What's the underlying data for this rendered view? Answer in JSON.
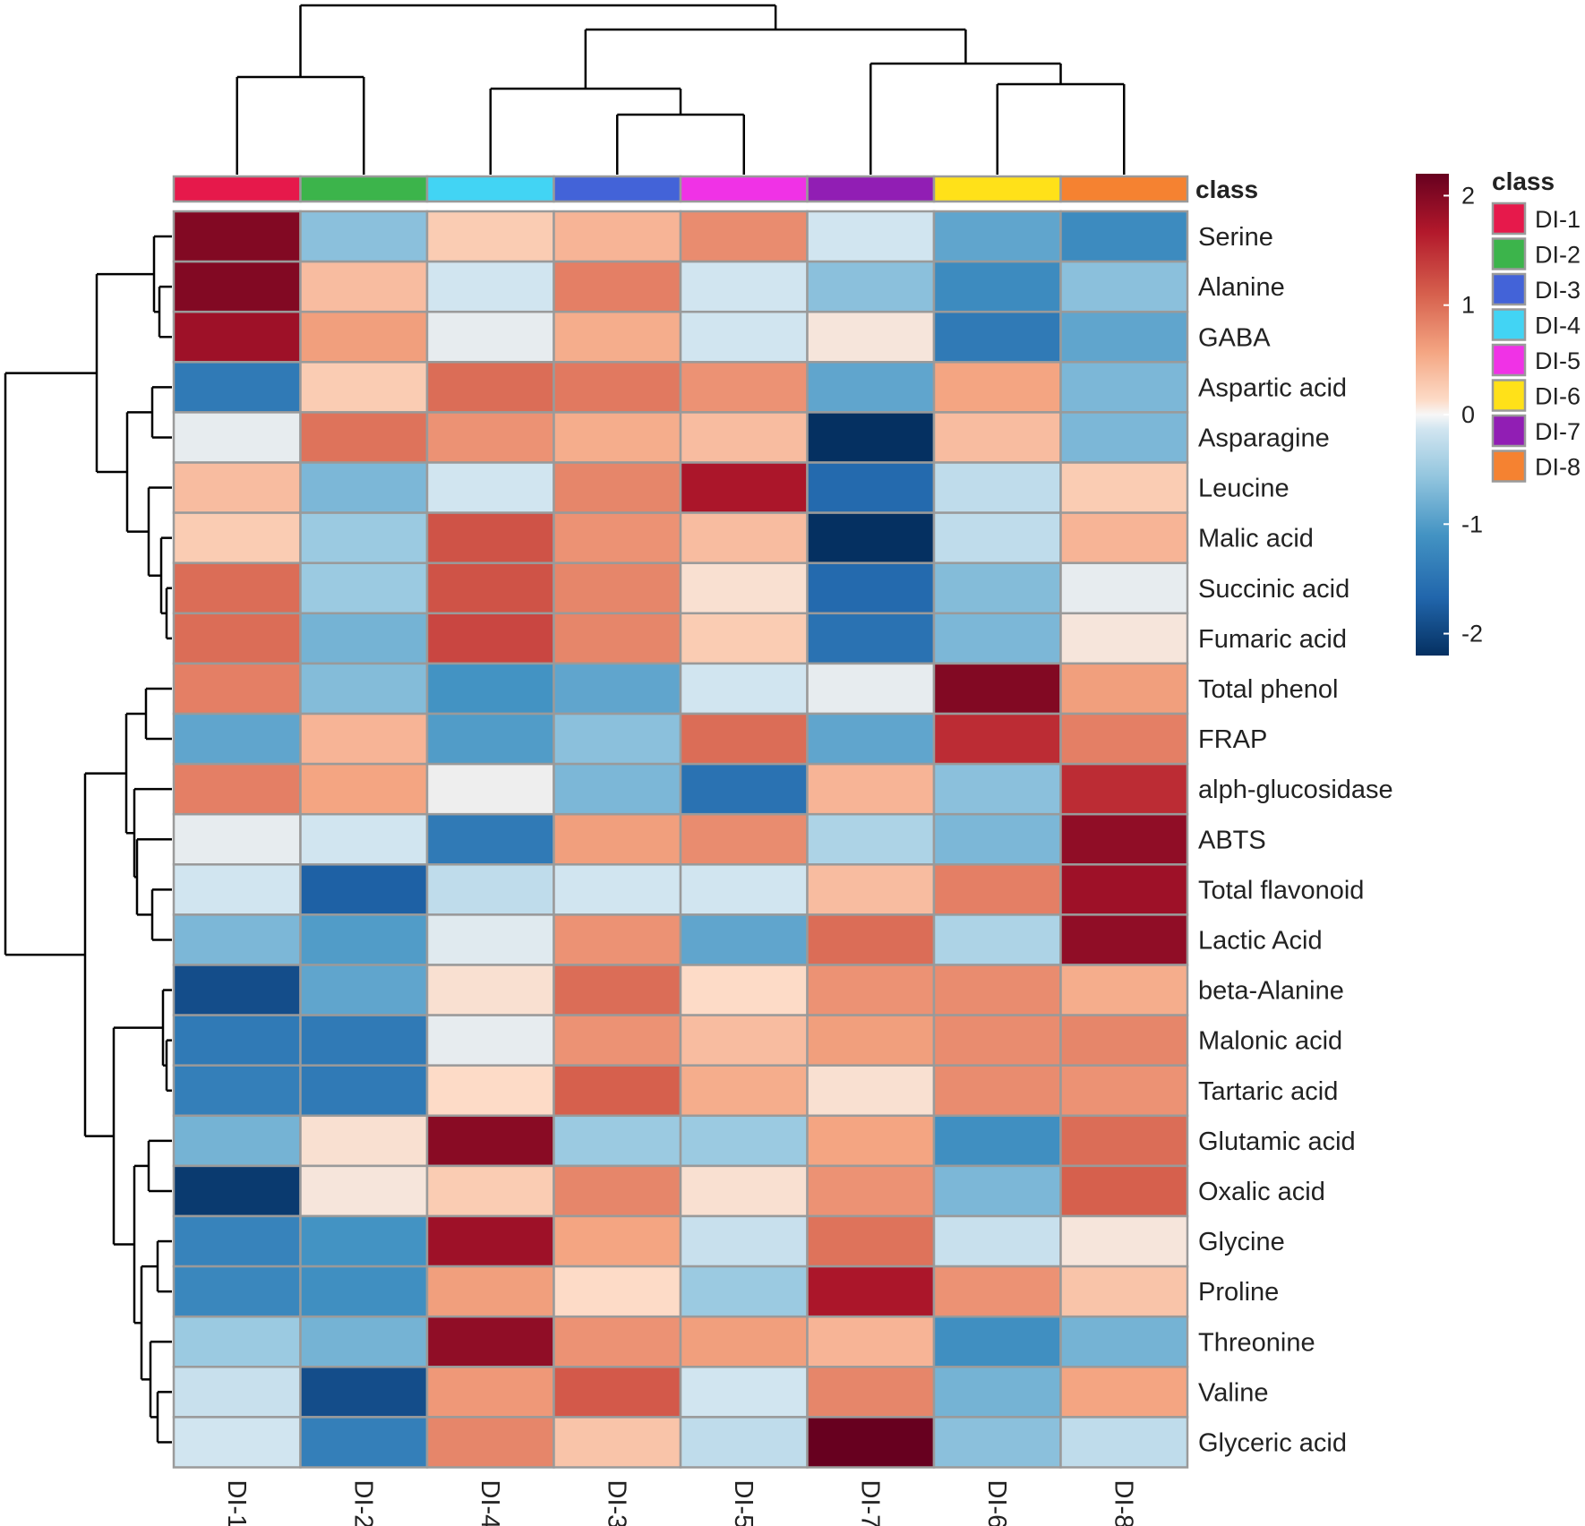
{
  "chart_data": {
    "type": "heatmap",
    "rows": [
      "Serine",
      "Alanine",
      "GABA",
      "Aspartic acid",
      "Asparagine",
      "Leucine",
      "Malic acid",
      "Succinic acid",
      "Fumaric acid",
      "Total phenol",
      "FRAP",
      "alph-glucosidase",
      "ABTS",
      "Total flavonoid",
      "Lactic Acid",
      "beta-Alanine",
      "Malonic acid",
      "Tartaric acid",
      "Glutamic acid",
      "Oxalic acid",
      "Glycine",
      "Proline",
      "Threonine",
      "Valine",
      "Glyceric acid"
    ],
    "columns": [
      "DI-1",
      "DI-2",
      "DI-4",
      "DI-3",
      "DI-5",
      "DI-7",
      "DI-6",
      "DI-8"
    ],
    "values": [
      [
        2.0,
        -0.6,
        0.3,
        0.45,
        0.75,
        -0.2,
        -0.9,
        -1.2
      ],
      [
        2.0,
        0.4,
        -0.2,
        0.85,
        -0.2,
        -0.6,
        -1.2,
        -0.6
      ],
      [
        1.8,
        0.6,
        -0.05,
        0.5,
        -0.2,
        0.1,
        -1.4,
        -0.9
      ],
      [
        -1.4,
        0.3,
        1.0,
        0.9,
        0.7,
        -0.9,
        0.55,
        -0.7
      ],
      [
        -0.05,
        0.95,
        0.7,
        0.5,
        0.4,
        -2.2,
        0.4,
        -0.7
      ],
      [
        0.4,
        -0.7,
        -0.2,
        0.8,
        1.7,
        -1.6,
        -0.3,
        0.3
      ],
      [
        0.3,
        -0.5,
        1.2,
        0.7,
        0.4,
        -2.2,
        -0.3,
        0.45
      ],
      [
        1.0,
        -0.5,
        1.2,
        0.8,
        0.15,
        -1.6,
        -0.65,
        -0.05
      ],
      [
        1.0,
        -0.75,
        1.3,
        0.8,
        0.3,
        -1.5,
        -0.7,
        0.1
      ],
      [
        0.85,
        -0.65,
        -1.1,
        -0.9,
        -0.2,
        -0.05,
        2.0,
        0.6
      ],
      [
        -0.9,
        0.45,
        -1.0,
        -0.6,
        1.0,
        -0.9,
        1.5,
        0.85
      ],
      [
        0.85,
        0.55,
        0.0,
        -0.7,
        -1.5,
        0.45,
        -0.6,
        1.5
      ],
      [
        -0.05,
        -0.2,
        -1.4,
        0.6,
        0.75,
        -0.4,
        -0.7,
        1.9
      ],
      [
        -0.2,
        -1.7,
        -0.3,
        -0.2,
        -0.2,
        0.4,
        0.85,
        1.8
      ],
      [
        -0.7,
        -1.0,
        -0.1,
        0.7,
        -0.9,
        1.0,
        -0.4,
        1.9
      ],
      [
        -1.9,
        -0.9,
        0.15,
        1.0,
        0.2,
        0.7,
        0.75,
        0.5
      ],
      [
        -1.4,
        -1.4,
        -0.05,
        0.7,
        0.4,
        0.6,
        0.75,
        0.8
      ],
      [
        -1.35,
        -1.4,
        0.2,
        1.1,
        0.5,
        0.15,
        0.75,
        0.7
      ],
      [
        -0.75,
        0.15,
        1.95,
        -0.5,
        -0.5,
        0.55,
        -1.15,
        1.0
      ],
      [
        -2.1,
        0.1,
        0.3,
        0.8,
        0.15,
        0.7,
        -0.7,
        1.1
      ],
      [
        -1.3,
        -1.1,
        1.8,
        0.55,
        -0.25,
        0.95,
        -0.25,
        0.1
      ],
      [
        -1.25,
        -1.15,
        0.6,
        0.2,
        -0.5,
        1.7,
        0.7,
        0.35
      ],
      [
        -0.5,
        -0.75,
        1.9,
        0.7,
        0.6,
        0.45,
        -1.15,
        -0.75
      ],
      [
        -0.25,
        -1.9,
        0.65,
        1.15,
        -0.2,
        0.8,
        -0.75,
        0.55
      ],
      [
        -0.2,
        -1.35,
        0.8,
        0.35,
        -0.3,
        2.2,
        -0.6,
        -0.3
      ]
    ],
    "column_class": [
      "DI-1",
      "DI-2",
      "DI-4",
      "DI-3",
      "DI-5",
      "DI-7",
      "DI-6",
      "DI-8"
    ],
    "class_annotation_title": "class",
    "colorbar": {
      "range": [
        -2.2,
        2.2
      ],
      "ticks": [
        2,
        1,
        0,
        -1,
        -2
      ],
      "tick_labels": [
        "2",
        "1",
        "0",
        "-1",
        "-2"
      ],
      "low_color": "#053061",
      "mid_color": "#f7f7f7",
      "high_color": "#67001f"
    },
    "legend": {
      "title": "class",
      "entries": [
        {
          "label": "DI-1",
          "color": "#e6194b"
        },
        {
          "label": "DI-2",
          "color": "#3cb44b"
        },
        {
          "label": "DI-3",
          "color": "#4363d8"
        },
        {
          "label": "DI-4",
          "color": "#42d4f4"
        },
        {
          "label": "DI-5",
          "color": "#f032e6"
        },
        {
          "label": "DI-6",
          "color": "#ffe119"
        },
        {
          "label": "DI-7",
          "color": "#911eb4"
        },
        {
          "label": "DI-8",
          "color": "#f58231"
        }
      ]
    }
  }
}
